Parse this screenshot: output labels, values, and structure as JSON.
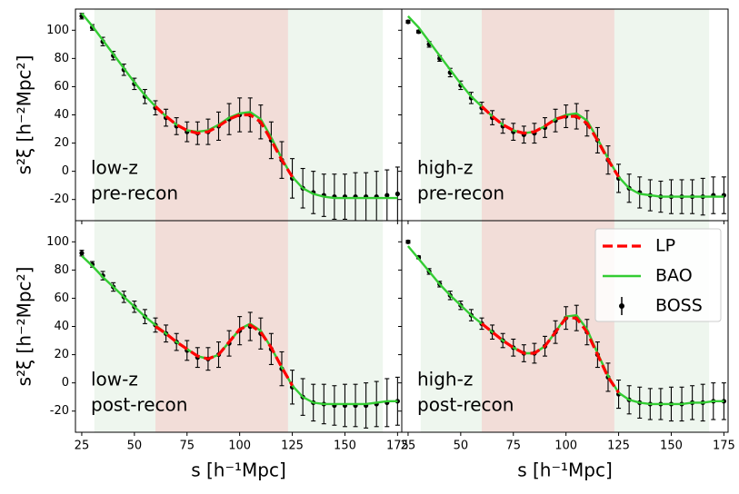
{
  "chart_data": [
    {
      "type": "errorbar_line",
      "label_lines": [
        "low-z",
        "pre-recon"
      ],
      "ylabel": "s²ξ [h⁻²Mpc²]",
      "xlim": [
        22,
        177
      ],
      "ylim": [
        -35,
        115
      ],
      "yticks": [
        -20,
        0,
        20,
        40,
        60,
        80,
        100
      ],
      "regions": [
        {
          "from": 31,
          "to": 60,
          "color": "#eef6ee"
        },
        {
          "from": 60,
          "to": 123,
          "color": "#f2ddd8"
        },
        {
          "from": 123,
          "to": 168,
          "color": "#eef6ee"
        }
      ],
      "x": [
        25,
        30,
        35,
        40,
        45,
        50,
        55,
        60,
        65,
        70,
        75,
        80,
        85,
        90,
        95,
        100,
        105,
        110,
        115,
        120,
        125,
        130,
        135,
        140,
        145,
        150,
        155,
        160,
        165,
        170,
        175
      ],
      "series": [
        {
          "name": "LP",
          "color": "#ff0000",
          "style": "dashed",
          "values": [
            null,
            null,
            null,
            null,
            null,
            null,
            null,
            46,
            39,
            33,
            29,
            27,
            28,
            32,
            37,
            40,
            40,
            35,
            22,
            8,
            -4,
            null,
            null,
            null,
            null,
            null,
            null,
            null,
            null,
            null,
            null
          ]
        },
        {
          "name": "BAO",
          "color": "#33cc33",
          "style": "solid",
          "values": [
            112,
            103,
            93,
            83,
            73,
            63,
            54,
            46,
            39,
            33,
            29,
            28,
            29,
            33,
            38,
            41,
            42,
            37,
            24,
            9,
            -4,
            -12,
            -16,
            -18,
            -19,
            -19,
            -19,
            -19,
            -19,
            -19,
            -19
          ]
        },
        {
          "name": "BOSS",
          "color": "#000000",
          "style": "errorbar",
          "values": [
            110,
            102,
            92,
            82,
            72,
            62,
            53,
            45,
            38,
            32,
            28,
            27,
            28,
            32,
            37,
            40,
            40,
            35,
            22,
            8,
            -5,
            -12,
            -15,
            -17,
            -18,
            -18,
            -18,
            -18,
            -18,
            -17,
            -16
          ],
          "errors": [
            2,
            2,
            3,
            3,
            4,
            4,
            5,
            5,
            6,
            6,
            7,
            8,
            9,
            10,
            11,
            12,
            12,
            12,
            13,
            13,
            14,
            14,
            15,
            15,
            16,
            16,
            17,
            17,
            18,
            18,
            19
          ]
        }
      ]
    },
    {
      "type": "errorbar_line",
      "label_lines": [
        "high-z",
        "pre-recon"
      ],
      "xlim": [
        22,
        177
      ],
      "ylim": [
        -35,
        115
      ],
      "regions": [
        {
          "from": 31,
          "to": 60,
          "color": "#eef6ee"
        },
        {
          "from": 60,
          "to": 123,
          "color": "#f2ddd8"
        },
        {
          "from": 123,
          "to": 168,
          "color": "#eef6ee"
        }
      ],
      "x": [
        25,
        30,
        35,
        40,
        45,
        50,
        55,
        60,
        65,
        70,
        75,
        80,
        85,
        90,
        95,
        100,
        105,
        110,
        115,
        120,
        125,
        130,
        135,
        140,
        145,
        150,
        155,
        160,
        165,
        170,
        175
      ],
      "series": [
        {
          "name": "LP",
          "color": "#ff0000",
          "style": "dashed",
          "values": [
            null,
            null,
            null,
            null,
            null,
            null,
            null,
            46,
            39,
            33,
            29,
            27,
            28,
            32,
            37,
            39,
            39,
            34,
            22,
            8,
            -4,
            null,
            null,
            null,
            null,
            null,
            null,
            null,
            null,
            null,
            null
          ]
        },
        {
          "name": "BAO",
          "color": "#33cc33",
          "style": "solid",
          "values": [
            110,
            102,
            92,
            82,
            72,
            62,
            53,
            46,
            39,
            33,
            29,
            27,
            28,
            32,
            37,
            40,
            41,
            36,
            23,
            9,
            -4,
            -12,
            -16,
            -17,
            -18,
            -18,
            -18,
            -18,
            -18,
            -18,
            -18
          ]
        },
        {
          "name": "BOSS",
          "color": "#000000",
          "style": "errorbar",
          "values": [
            106,
            99,
            90,
            80,
            70,
            61,
            52,
            45,
            38,
            32,
            28,
            26,
            27,
            31,
            36,
            39,
            39,
            34,
            22,
            8,
            -5,
            -12,
            -15,
            -17,
            -18,
            -18,
            -18,
            -18,
            -18,
            -17,
            -17
          ],
          "errors": [
            1,
            1,
            2,
            2,
            3,
            3,
            4,
            4,
            5,
            5,
            6,
            6,
            7,
            7,
            8,
            8,
            9,
            9,
            9,
            10,
            10,
            10,
            11,
            11,
            11,
            12,
            12,
            12,
            13,
            13,
            13
          ]
        }
      ]
    },
    {
      "type": "errorbar_line",
      "label_lines": [
        "low-z",
        "post-recon"
      ],
      "ylabel": "s²ξ [h⁻²Mpc²]",
      "xlabel": "s [h⁻¹Mpc]",
      "xlim": [
        22,
        177
      ],
      "ylim": [
        -35,
        115
      ],
      "xticks": [
        25,
        50,
        75,
        100,
        125,
        150,
        175
      ],
      "yticks": [
        -20,
        0,
        20,
        40,
        60,
        80,
        100
      ],
      "regions": [
        {
          "from": 31,
          "to": 60,
          "color": "#eef6ee"
        },
        {
          "from": 60,
          "to": 123,
          "color": "#f2ddd8"
        },
        {
          "from": 123,
          "to": 168,
          "color": "#eef6ee"
        }
      ],
      "x": [
        25,
        30,
        35,
        40,
        45,
        50,
        55,
        60,
        65,
        70,
        75,
        80,
        85,
        90,
        95,
        100,
        105,
        110,
        115,
        120,
        125,
        130,
        135,
        140,
        145,
        150,
        155,
        160,
        165,
        170,
        175
      ],
      "series": [
        {
          "name": "LP",
          "color": "#ff0000",
          "style": "dashed",
          "values": [
            null,
            null,
            null,
            null,
            null,
            null,
            null,
            40,
            35,
            29,
            24,
            19,
            17,
            20,
            29,
            38,
            41,
            36,
            25,
            11,
            -2,
            null,
            null,
            null,
            null,
            null,
            null,
            null,
            null,
            null,
            null
          ]
        },
        {
          "name": "BAO",
          "color": "#33cc33",
          "style": "solid",
          "values": [
            90,
            83,
            75,
            68,
            61,
            54,
            47,
            41,
            35,
            29,
            24,
            19,
            17,
            20,
            29,
            38,
            42,
            37,
            25,
            11,
            -2,
            -10,
            -14,
            -15,
            -15,
            -15,
            -15,
            -15,
            -14,
            -13,
            -13
          ]
        },
        {
          "name": "BOSS",
          "color": "#000000",
          "style": "errorbar",
          "values": [
            92,
            84,
            76,
            68,
            61,
            54,
            47,
            41,
            35,
            29,
            23,
            18,
            17,
            20,
            28,
            37,
            40,
            35,
            24,
            10,
            -3,
            -10,
            -14,
            -15,
            -16,
            -16,
            -16,
            -16,
            -15,
            -14,
            -13
          ],
          "errors": [
            2,
            2,
            3,
            3,
            4,
            4,
            5,
            5,
            6,
            6,
            7,
            7,
            8,
            9,
            9,
            10,
            10,
            11,
            11,
            12,
            12,
            13,
            13,
            14,
            14,
            15,
            15,
            16,
            16,
            17,
            17
          ]
        }
      ]
    },
    {
      "type": "errorbar_line",
      "label_lines": [
        "high-z",
        "post-recon"
      ],
      "xlabel": "s [h⁻¹Mpc]",
      "legend": "upper right",
      "xlim": [
        22,
        177
      ],
      "ylim": [
        -35,
        115
      ],
      "xticks": [
        25,
        50,
        75,
        100,
        125,
        150,
        175
      ],
      "regions": [
        {
          "from": 31,
          "to": 60,
          "color": "#eef6ee"
        },
        {
          "from": 60,
          "to": 123,
          "color": "#f2ddd8"
        },
        {
          "from": 123,
          "to": 168,
          "color": "#eef6ee"
        }
      ],
      "x": [
        25,
        30,
        35,
        40,
        45,
        50,
        55,
        60,
        65,
        70,
        75,
        80,
        85,
        90,
        95,
        100,
        105,
        110,
        115,
        120,
        125,
        130,
        135,
        140,
        145,
        150,
        155,
        160,
        165,
        170,
        175
      ],
      "series": [
        {
          "name": "LP",
          "color": "#ff0000",
          "style": "dashed",
          "values": [
            null,
            null,
            null,
            null,
            null,
            null,
            null,
            42,
            36,
            30,
            25,
            21,
            21,
            26,
            36,
            46,
            46,
            36,
            20,
            4,
            -7,
            null,
            null,
            null,
            null,
            null,
            null,
            null,
            null,
            null,
            null
          ]
        },
        {
          "name": "BAO",
          "color": "#33cc33",
          "style": "solid",
          "values": [
            97,
            88,
            79,
            70,
            62,
            55,
            48,
            42,
            36,
            30,
            25,
            21,
            21,
            26,
            36,
            47,
            48,
            38,
            21,
            5,
            -7,
            -12,
            -14,
            -15,
            -15,
            -15,
            -15,
            -14,
            -14,
            -13,
            -13
          ]
        },
        {
          "name": "BOSS",
          "color": "#000000",
          "style": "errorbar",
          "values": [
            100,
            89,
            79,
            70,
            62,
            55,
            48,
            42,
            36,
            30,
            25,
            21,
            21,
            26,
            36,
            46,
            46,
            36,
            20,
            4,
            -8,
            -12,
            -14,
            -15,
            -15,
            -15,
            -15,
            -14,
            -14,
            -13,
            -13
          ],
          "errors": [
            1,
            1,
            2,
            2,
            3,
            3,
            4,
            4,
            5,
            5,
            6,
            6,
            7,
            7,
            8,
            8,
            9,
            9,
            9,
            10,
            10,
            10,
            11,
            11,
            11,
            12,
            12,
            12,
            13,
            13,
            13
          ]
        }
      ]
    }
  ]
}
